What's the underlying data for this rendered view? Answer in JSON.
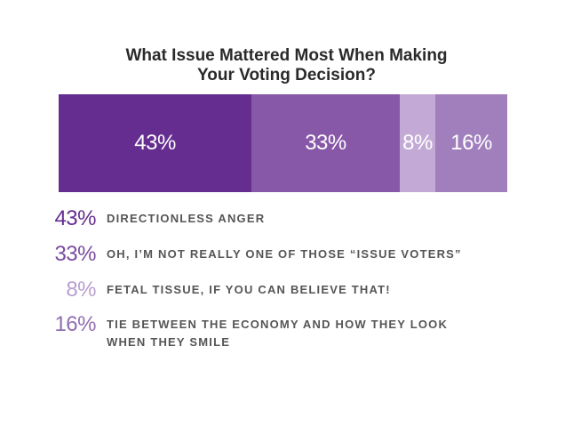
{
  "chart_data": {
    "type": "bar",
    "title_lines": [
      "What Issue Mattered Most When Making",
      "Your Voting Decision?"
    ],
    "segments": [
      {
        "value": 43,
        "label": "43%",
        "color": "#652d90",
        "legend_color": "#652d90",
        "legend_text": "DIRECTIONLESS ANGER"
      },
      {
        "value": 33,
        "label": "33%",
        "color": "#8757a8",
        "legend_color": "#7a4ba0",
        "legend_text": "OH, I’M NOT REALLY ONE OF THOSE “ISSUE VOTERS”"
      },
      {
        "value": 8,
        "label": "8%",
        "color": "#c3aad6",
        "legend_color": "#b79fcf",
        "legend_text": "FETAL TISSUE, IF YOU CAN BELIEVE THAT!"
      },
      {
        "value": 16,
        "label": "16%",
        "color": "#a17fbd",
        "legend_color": "#8f6db0",
        "legend_text": "TIE BETWEEN THE ECONOMY AND HOW THEY LOOK WHEN THEY SMILE"
      }
    ]
  }
}
